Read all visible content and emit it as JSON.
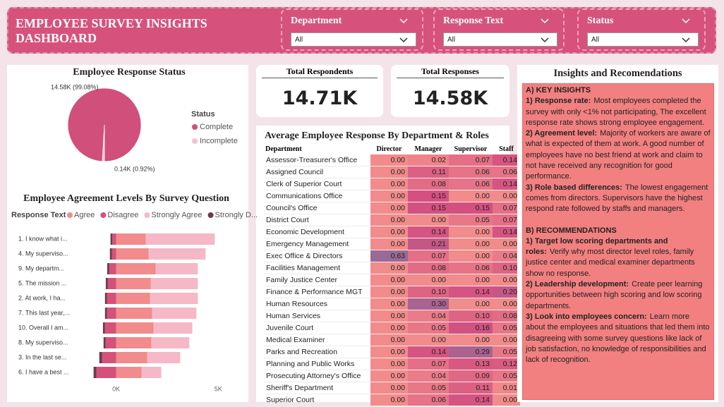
{
  "header": {
    "title": "EMPLOYEE SURVEY INSIGHTS DASHBOARD"
  },
  "filters": [
    {
      "label": "Department",
      "value": "All"
    },
    {
      "label": "Response Text",
      "value": "All"
    },
    {
      "label": "Status",
      "value": "All"
    }
  ],
  "cards": [
    {
      "title": "Total Respondents",
      "value": "14.71K"
    },
    {
      "title": "Total Responses",
      "value": "14.58K"
    }
  ],
  "matrix": {
    "title": "Average Employee Response By Department & Roles",
    "columns": [
      "Department",
      "Director",
      "Manager",
      "Supervisor",
      "Staff"
    ],
    "rows": [
      [
        "Assessor-Treasurer's Office",
        "0.00",
        "0.02",
        "0.07",
        "0.14"
      ],
      [
        "Assigned Council",
        "0.00",
        "0.11",
        "0.06",
        "0.06"
      ],
      [
        "Clerk of Superior Court",
        "0.00",
        "0.08",
        "0.06",
        "0.14"
      ],
      [
        "Communications Office",
        "0.00",
        "0.15",
        "0.00",
        "0.00"
      ],
      [
        "Council's Office",
        "0.00",
        "0.15",
        "0.15",
        "0.07"
      ],
      [
        "District Court",
        "0.00",
        "0.00",
        "0.05",
        "0.07"
      ],
      [
        "Economic Development",
        "0.00",
        "0.14",
        "0.00",
        "0.14"
      ],
      [
        "Emergency Management",
        "0.00",
        "0.21",
        "0.00",
        "0.00"
      ],
      [
        "Exec Office & Directors",
        "0.63",
        "0.07",
        "0.00",
        "0.04"
      ],
      [
        "Facilities Management",
        "0.00",
        "0.08",
        "0.06",
        "0.10"
      ],
      [
        "Family Justice Center",
        "0.00",
        "0.00",
        "0.00",
        "0.00"
      ],
      [
        "Finance & Performance MGT",
        "0.00",
        "0.10",
        "0.14",
        "0.20"
      ],
      [
        "Human Resources",
        "0.00",
        "0.30",
        "0.00",
        "0.00"
      ],
      [
        "Human Services",
        "0.00",
        "0.04",
        "0.10",
        "0.08"
      ],
      [
        "Juvenile Court",
        "0.00",
        "0.05",
        "0.16",
        "0.05"
      ],
      [
        "Medical Examiner",
        "0.00",
        "0.00",
        "0.00",
        "0.00"
      ],
      [
        "Parks and Recreation",
        "0.00",
        "0.14",
        "0.29",
        "0.05"
      ],
      [
        "Planning and Public Works",
        "0.00",
        "0.07",
        "0.13",
        "0.12"
      ],
      [
        "Prosecuting Attorney's Office",
        "0.00",
        "0.04",
        "0.09",
        "0.05"
      ],
      [
        "Sheriff's Department",
        "0.00",
        "0.05",
        "0.11",
        "0.01"
      ],
      [
        "Superior Court",
        "0.00",
        "0.06",
        "0.14",
        "0.00"
      ]
    ]
  },
  "insights": {
    "title": "Insights and Recomendations",
    "paragraphs": [
      {
        "heading": "A) KEY INSIGHTS"
      },
      {
        "lead": "1) Response rate:",
        "text": "Most employees completed the survey with only <1% not participating, The excellent response rate shows strong employee engagement."
      },
      {
        "lead": "2) Agreement level:",
        "text": "Majority of workers are aware of what is expected of them at work. A good number of employees have no best friend at work and claim to not have received any recognition for good performance."
      },
      {
        "lead": "3) Role based differences:",
        "text": "The lowest engagement comes from directors. Supervisors have the highest respond rate followed by staffs and managers."
      },
      {
        "heading": "B) RECOMMENDATIONS"
      },
      {
        "lead": "1) Target low scoring departments and roles:",
        "text": "Verify why most director level roles, family justice center and medical examiner departments show no response."
      },
      {
        "lead": "2) Leadership development:",
        "text": "Create peer learning opportunities between high scoring and low scoring departments."
      },
      {
        "lead": "3) Look into employees concern:",
        "text": "Learn more about the employees and situations that led them into disagreeing with some  survey questions like lack of job satisfaction, no knowledge of responsibilities and lack of recognition."
      }
    ]
  },
  "chart_data": [
    {
      "type": "pie",
      "title": "Employee Response Status",
      "legend_title": "Status",
      "categories": [
        "Complete",
        "Incomplete"
      ],
      "values": [
        99.08,
        0.92
      ],
      "value_labels": [
        "14.58K (99.08%)",
        "0.14K (0.92%)"
      ],
      "colors": [
        "#d14f7b",
        "#f5c0cf"
      ]
    },
    {
      "type": "bar",
      "orientation": "horizontal",
      "stacked": true,
      "title": "Employee Agreement Levels By Survey Question",
      "legend_title": "Response Text",
      "categories": [
        "1. I know what i...",
        "4. My superviso...",
        "9. My departm...",
        "5. The mission ...",
        "2. At work, I ha...",
        "7. This last year,...",
        "10. Overall I am...",
        "8. My superviso...",
        "3. In the last se...",
        "6. I have a best ..."
      ],
      "series": [
        {
          "name": "Agree",
          "color": "#f28b8b",
          "values": [
            1450,
            1590,
            1930,
            1690,
            1660,
            1760,
            1830,
            1720,
            1520,
            1240
          ]
        },
        {
          "name": "Disagree",
          "color": "#d6517a",
          "values": [
            -190,
            -210,
            -340,
            -410,
            -450,
            -450,
            -550,
            -520,
            -690,
            -970
          ]
        },
        {
          "name": "Strongly Agree",
          "color": "#f5b8c6",
          "values": [
            3380,
            2790,
            2070,
            2310,
            2340,
            2170,
            1900,
            1860,
            1620,
            970
          ]
        },
        {
          "name": "Strongly D...",
          "color": "#6b3a4e",
          "values": [
            -90,
            -100,
            -100,
            -100,
            -100,
            -100,
            -100,
            -100,
            -140,
            -140
          ]
        }
      ],
      "xlim": [
        -1200,
        5200
      ],
      "xticks": [
        {
          "value": 0,
          "label": "0K"
        },
        {
          "value": 5000,
          "label": "5K"
        }
      ]
    }
  ]
}
